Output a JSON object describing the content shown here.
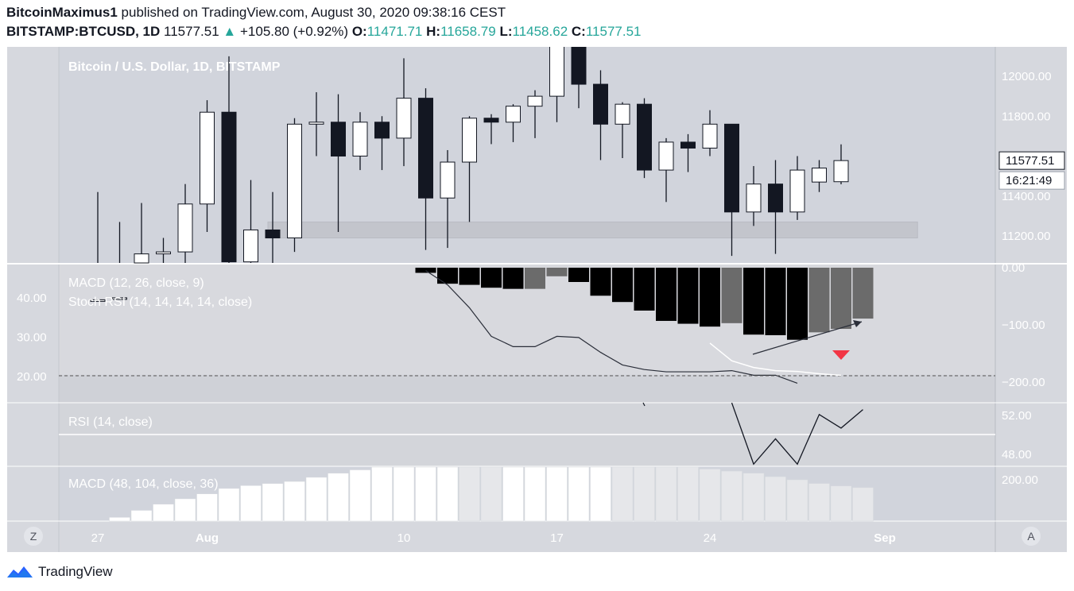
{
  "header": {
    "publisher": "BitcoinMaximus1",
    "published_text": "published on TradingView.com, August 30, 2020 09:38:16 CEST",
    "symbol": "BITSTAMP:BTCUSD, 1D",
    "last": "11577.51",
    "change": "+105.80 (+0.92%)",
    "o_label": "O:",
    "o_value": "11471.71",
    "h_label": "H:",
    "h_value": "11658.79",
    "l_label": "L:",
    "l_value": "11458.62",
    "c_label": "C:",
    "c_value": "11577.51"
  },
  "footer": {
    "brand": "TradingView"
  },
  "colors": {
    "main_bg": "#d1d4dc",
    "pane2_bg": "#d8d9de",
    "pane3_bg": "#d3d5da",
    "support_zone": "#c3c5cc",
    "up_candle": "#ffffff",
    "down_candle": "#131722",
    "hist_dark": "#000000",
    "hist_gray": "#6b6b6b",
    "marker_red": "#f23645"
  },
  "chart_data": [
    {
      "type": "candlestick",
      "title": "Bitcoin / U.S. Dollar, 1D, BITSTAMP",
      "y_tick_labels": [
        "12000.00",
        "11800.00",
        "11400.00",
        "11200.00"
      ],
      "price_label": "11577.51",
      "countdown_label": "16:21:49",
      "x_tick_labels": [
        {
          "label": "27",
          "index": 0
        },
        {
          "label": "Aug",
          "index": 5
        },
        {
          "label": "10",
          "index": 14
        },
        {
          "label": "17",
          "index": 21
        },
        {
          "label": "24",
          "index": 28
        },
        {
          "label": "Sep",
          "index": 36
        }
      ],
      "dates": [
        "2020-07-27",
        "2020-07-28",
        "2020-07-29",
        "2020-07-30",
        "2020-07-31",
        "2020-08-01",
        "2020-08-02",
        "2020-08-03",
        "2020-08-04",
        "2020-08-05",
        "2020-08-06",
        "2020-08-07",
        "2020-08-08",
        "2020-08-09",
        "2020-08-10",
        "2020-08-11",
        "2020-08-12",
        "2020-08-13",
        "2020-08-14",
        "2020-08-15",
        "2020-08-16",
        "2020-08-17",
        "2020-08-18",
        "2020-08-19",
        "2020-08-20",
        "2020-08-21",
        "2020-08-22",
        "2020-08-23",
        "2020-08-24",
        "2020-08-25",
        "2020-08-26",
        "2020-08-27",
        "2020-08-28",
        "2020-08-29",
        "2020-08-30"
      ],
      "ohlc": [
        {
          "o": 10600,
          "h": 11420,
          "l": 10520,
          "c": 10880
        },
        {
          "o": 10880,
          "h": 11270,
          "l": 10600,
          "c": 10890
        },
        {
          "o": 10890,
          "h": 11365,
          "l": 10850,
          "c": 11110
        },
        {
          "o": 11110,
          "h": 11190,
          "l": 10880,
          "c": 11120
        },
        {
          "o": 11120,
          "h": 11460,
          "l": 10950,
          "c": 11360
        },
        {
          "o": 11360,
          "h": 11880,
          "l": 11220,
          "c": 11820
        },
        {
          "o": 11820,
          "h": 12100,
          "l": 10650,
          "c": 11070
        },
        {
          "o": 11070,
          "h": 11480,
          "l": 10950,
          "c": 11230
        },
        {
          "o": 11230,
          "h": 11420,
          "l": 10990,
          "c": 11190
        },
        {
          "o": 11190,
          "h": 11790,
          "l": 11120,
          "c": 11760
        },
        {
          "o": 11760,
          "h": 11920,
          "l": 11600,
          "c": 11770
        },
        {
          "o": 11770,
          "h": 11910,
          "l": 11220,
          "c": 11600
        },
        {
          "o": 11600,
          "h": 11820,
          "l": 11530,
          "c": 11770
        },
        {
          "o": 11770,
          "h": 11800,
          "l": 11530,
          "c": 11690
        },
        {
          "o": 11690,
          "h": 12090,
          "l": 11550,
          "c": 11890
        },
        {
          "o": 11890,
          "h": 11940,
          "l": 11130,
          "c": 11390
        },
        {
          "o": 11390,
          "h": 11630,
          "l": 11140,
          "c": 11570
        },
        {
          "o": 11570,
          "h": 11800,
          "l": 11270,
          "c": 11790
        },
        {
          "o": 11790,
          "h": 11810,
          "l": 11660,
          "c": 11770
        },
        {
          "o": 11770,
          "h": 11860,
          "l": 11670,
          "c": 11850
        },
        {
          "o": 11850,
          "h": 11930,
          "l": 11690,
          "c": 11900
        },
        {
          "o": 11900,
          "h": 12470,
          "l": 11770,
          "c": 12300
        },
        {
          "o": 12300,
          "h": 12400,
          "l": 11840,
          "c": 11960
        },
        {
          "o": 11960,
          "h": 12030,
          "l": 11580,
          "c": 11760
        },
        {
          "o": 11760,
          "h": 11870,
          "l": 11590,
          "c": 11860
        },
        {
          "o": 11860,
          "h": 11890,
          "l": 11490,
          "c": 11530
        },
        {
          "o": 11530,
          "h": 11690,
          "l": 11370,
          "c": 11670
        },
        {
          "o": 11670,
          "h": 11710,
          "l": 11520,
          "c": 11640
        },
        {
          "o": 11640,
          "h": 11830,
          "l": 11600,
          "c": 11760
        },
        {
          "o": 11760,
          "h": 11760,
          "l": 11100,
          "c": 11320
        },
        {
          "o": 11320,
          "h": 11550,
          "l": 11250,
          "c": 11460
        },
        {
          "o": 11460,
          "h": 11580,
          "l": 11110,
          "c": 11320
        },
        {
          "o": 11320,
          "h": 11600,
          "l": 11280,
          "c": 11530
        },
        {
          "o": 11470,
          "h": 11580,
          "l": 11420,
          "c": 11540
        },
        {
          "o": 11471.71,
          "h": 11658.79,
          "l": 11458.62,
          "c": 11577.51
        }
      ],
      "support_zone": {
        "low": 11190,
        "high": 11270
      }
    },
    {
      "type": "bar",
      "title": "MACD (12, 26, close, 9)",
      "y_tick_labels": [
        "0.00",
        "−100.00",
        "−200.00"
      ],
      "x_start_index": 15,
      "histogram": [
        -9,
        -28,
        -30,
        -35,
        -37,
        -37,
        -15,
        -25,
        -49,
        -60,
        -75,
        -93,
        -98,
        -103,
        -97,
        -117,
        -118,
        -126,
        -113,
        -107,
        -89
      ],
      "hist_shade": [
        "d",
        "d",
        "d",
        "d",
        "d",
        "g",
        "g",
        "d",
        "d",
        "d",
        "d",
        "d",
        "d",
        "d",
        "g",
        "d",
        "d",
        "d",
        "g",
        "g",
        "g"
      ],
      "macd_line": [
        -5,
        -30,
        -70,
        -120,
        -138,
        -138,
        -120,
        -122,
        -148,
        -170,
        -178,
        -182,
        -182,
        -182,
        -180,
        -188,
        -188,
        -202
      ]
    },
    {
      "type": "line",
      "title": "Stoch RSI (14, 14, 14, 14, close)",
      "y_tick_labels": [
        "40.00",
        "30.00",
        "20.00"
      ],
      "signal_x_start_index": 28,
      "signal_line": [
        28.5,
        24.0,
        22.3,
        21.5,
        21.3,
        20.7,
        20.3
      ]
    },
    {
      "type": "line",
      "title": "RSI (14, close)",
      "y_tick_labels": [
        "52.00",
        "48.00"
      ],
      "x_start_index": 29,
      "values": [
        53.3,
        47.0,
        49.6,
        47.0,
        52.1,
        50.7,
        52.6
      ]
    },
    {
      "type": "bar",
      "title": "MACD (48, 104, close, 36)",
      "y_tick_labels": [
        "200.00"
      ],
      "x_start_index": 1,
      "histogram": [
        18,
        52,
        82,
        108,
        132,
        158,
        172,
        182,
        192,
        212,
        232,
        248,
        264,
        278,
        290,
        292,
        292,
        292,
        292,
        295,
        295,
        295,
        295,
        292,
        285,
        275,
        262,
        252,
        242,
        232,
        215,
        200,
        182,
        170,
        162
      ],
      "hist_shade": [
        "w",
        "w",
        "w",
        "w",
        "w",
        "w",
        "w",
        "w",
        "w",
        "w",
        "w",
        "w",
        "w",
        "w",
        "w",
        "w",
        "l",
        "l",
        "w",
        "w",
        "w",
        "w",
        "w",
        "l",
        "l",
        "l",
        "l",
        "l",
        "l",
        "l",
        "l",
        "l",
        "l",
        "l",
        "l"
      ]
    }
  ],
  "controls": {
    "left_button": "Z",
    "right_button": "A"
  }
}
